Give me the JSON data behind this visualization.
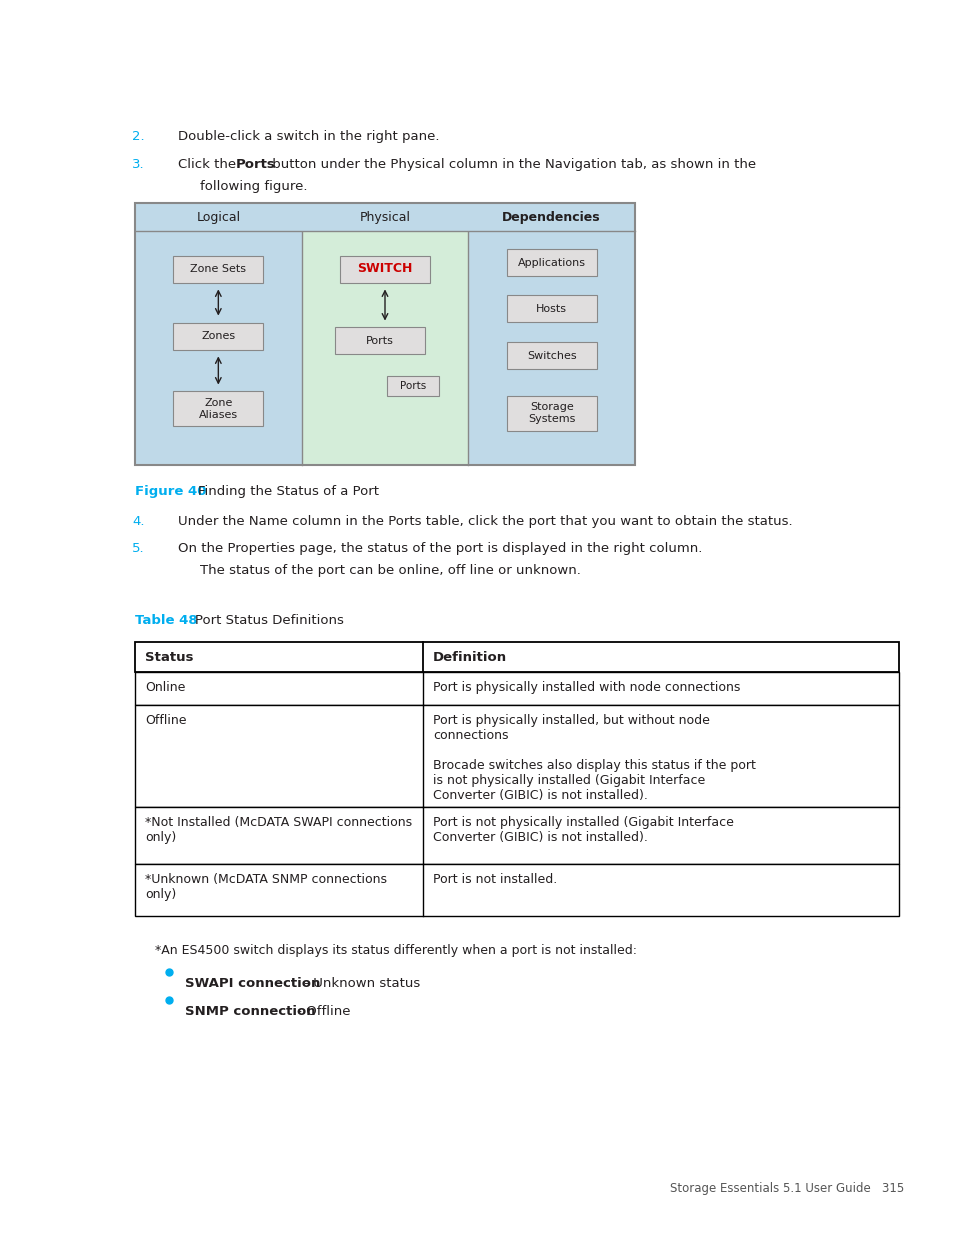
{
  "bg_color": "#ffffff",
  "page_width": 9.54,
  "page_height": 12.35,
  "cyan_color": "#00AEEF",
  "text_color": "#231F20",
  "step2_text": "Double-click a switch in the right pane.",
  "step3_pre": "Click the ",
  "step3_bold": "Ports",
  "step3_post": " button under the Physical column in the Navigation tab, as shown in the",
  "step3_cont": "following figure.",
  "figure_number": "Figure 40",
  "figure_caption": "  Finding the Status of a Port",
  "step4_text": "Under the Name column in the Ports table, click the port that you want to obtain the status.",
  "step5_line1": "On the Properties page, the status of the port is displayed in the right column.",
  "step5_line2": "The status of the port can be online, off line or unknown.",
  "table_title_number": "Table 48",
  "table_title_text": "   Port Status Definitions",
  "table_col1_header": "Status",
  "table_col2_header": "Definition",
  "table_rows": [
    {
      "status": "Online",
      "definition": "Port is physically installed with node connections"
    },
    {
      "status": "Offline",
      "definition": "Port is physically installed, but without node\nconnections\n\nBrocade switches also display this status if the port\nis not physically installed (Gigabit Interface\nConverter (GIBIC) is not installed)."
    },
    {
      "status": "*Not Installed (McDATA SWAPI connections\nonly)",
      "definition": "Port is not physically installed (Gigabit Interface\nConverter (GIBIC) is not installed)."
    },
    {
      "status": "*Unknown (McDATA SNMP connections\nonly)",
      "definition": "Port is not installed."
    }
  ],
  "footnote": "*An ES4500 switch displays its status differently when a port is not installed:",
  "bullet1_bold": "SWAPI connection",
  "bullet1_text": " - Unknown status",
  "bullet2_bold": "SNMP connection",
  "bullet2_text": " - Offline",
  "footer_text": "Storage Essentials 5.1 User Guide   315",
  "fig_logical_header": "Logical",
  "fig_physical_header": "Physical",
  "fig_deps_header": "Dependencies",
  "fig_btn_zone_sets": "Zone Sets",
  "fig_btn_zones": "Zones",
  "fig_btn_zone_aliases": "Zone\nAliases",
  "fig_btn_switch": "SWITCH",
  "fig_btn_ports": "Ports",
  "fig_btn_ports_small": "Ports",
  "fig_btn_applications": "Applications",
  "fig_btn_hosts": "Hosts",
  "fig_btn_switches": "Switches",
  "fig_btn_storage": "Storage\nSystems",
  "switch_color": "#cc0000",
  "btn_bg": "#e0dede",
  "btn_edge": "#888888",
  "fig_logical_bg": "#bfd9e8",
  "fig_physical_bg": "#d4edd9",
  "fig_deps_bg": "#bfd9e8",
  "fig_header_bg": "#bfd9e8",
  "fig_border_color": "#888888",
  "table_border_color": "#000000"
}
